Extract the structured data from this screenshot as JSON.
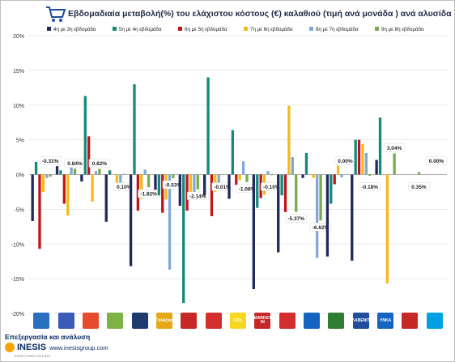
{
  "title": "Εβδομαδιαία μεταβολή(%) του ελάχιστου κόστους (€) καλαθιού (τιμή ανά μονάδα ) ανά αλυσίδα",
  "footer": {
    "processing": "Επεξεργασία και ανάλυση",
    "brand": "INESIS",
    "url": "www.inesisgroup.com",
    "tagline": "EVERYTHING ON DATA"
  },
  "stores": [
    {
      "label": "",
      "color": "#2a6fc0"
    },
    {
      "label": "",
      "color": "#3b5bb8"
    },
    {
      "label": "",
      "color": "#e84b2c"
    },
    {
      "label": "",
      "color": "#7cb342"
    },
    {
      "label": "",
      "color": "#1e3a6e"
    },
    {
      "label": "Γαλαξίας",
      "color": "#e6a817"
    },
    {
      "label": "",
      "color": "#c62828"
    },
    {
      "label": "",
      "color": "#d32f2f"
    },
    {
      "label": "LIDL",
      "color": "#f9d71c"
    },
    {
      "label": "MARKET IN",
      "color": "#c62828"
    },
    {
      "label": "",
      "color": "#d32f2f"
    },
    {
      "label": "",
      "color": "#1565c0"
    },
    {
      "label": "",
      "color": "#2e7d32"
    },
    {
      "label": "ΣΚΛΑΒΕΝΙΤΗΣ",
      "color": "#1f4e9c"
    },
    {
      "label": "ΥΝΚΑ",
      "color": "#1565c0"
    },
    {
      "label": "",
      "color": "#c62828"
    },
    {
      "label": "",
      "color": "#00a0e3"
    }
  ],
  "chart_data": {
    "type": "bar",
    "ylim": [
      -20,
      20
    ],
    "yticks": [
      "20%",
      "15%",
      "10%",
      "5%",
      "0%",
      "-5%",
      "-10%",
      "-15%",
      "-20%"
    ],
    "grid": true,
    "legend_position": "top",
    "colors": [
      "#1f2a5c",
      "#16897b",
      "#c0141b",
      "#f5b91a",
      "#7fa8d9",
      "#79aa4d"
    ],
    "series": [
      {
        "name": "4η με 3η εβδομάδα",
        "values": [
          -6.7,
          1.2,
          -1.0,
          -6.8,
          -13.2,
          -2.2,
          -4.5,
          -3.0,
          -3.5,
          -16.5,
          -11.2,
          -0.5,
          -11.8,
          -12.4,
          2.1,
          0,
          0
        ]
      },
      {
        "name": "5η με 4η εβδομάδα",
        "values": [
          1.8,
          0.6,
          11.3,
          0.6,
          13.0,
          -3.0,
          -18.5,
          14.0,
          6.4,
          -4.8,
          -3.0,
          3.1,
          -4.2,
          5.0,
          8.2,
          0,
          0
        ]
      },
      {
        "name": "6η με 5η εβδομάδα",
        "values": [
          -10.7,
          -4.2,
          5.5,
          0.0,
          -5.2,
          -5.5,
          -5.2,
          -6.0,
          -1.5,
          -3.4,
          -5.4,
          0.0,
          -1.4,
          5.0,
          0.0,
          0,
          0
        ]
      },
      {
        "name": "7η με 6η εβδομάδα",
        "values": [
          -2.5,
          -5.9,
          -3.9,
          -2.0,
          -3.5,
          -3.6,
          -3.3,
          -2.5,
          -0.8,
          -2.9,
          9.9,
          -0.5,
          1.3,
          4.4,
          -15.7,
          0,
          0
        ]
      },
      {
        "name": "8η με 7η εβδομάδα",
        "values": [
          -0.5,
          1.0,
          0.5,
          -2.2,
          0.7,
          -13.7,
          -3.5,
          -2.0,
          1.9,
          0.5,
          2.5,
          -12.0,
          -0.4,
          3.1,
          0.0,
          0,
          0
        ]
      },
      {
        "name": "9η με 8η εβδομάδα",
        "values": [
          -0.31,
          0.84,
          0.82,
          0.1,
          -1.82,
          -0.53,
          -2.14,
          -0.01,
          -1.08,
          -0.1,
          -5.37,
          -6.62,
          0.0,
          -0.18,
          3.04,
          0.35,
          0.0
        ]
      }
    ],
    "data_labels": [
      "-0.31%",
      "0.84%",
      "0.82%",
      "0.10%",
      "-1.82%",
      "-0.53%",
      "-2.14%",
      "-0.01%",
      "-1.08%",
      "-0.10%",
      "-5.37%",
      "-6.62%",
      "0.00%",
      "-0.18%",
      "3.04%",
      "0.35%",
      "0.00%"
    ]
  }
}
